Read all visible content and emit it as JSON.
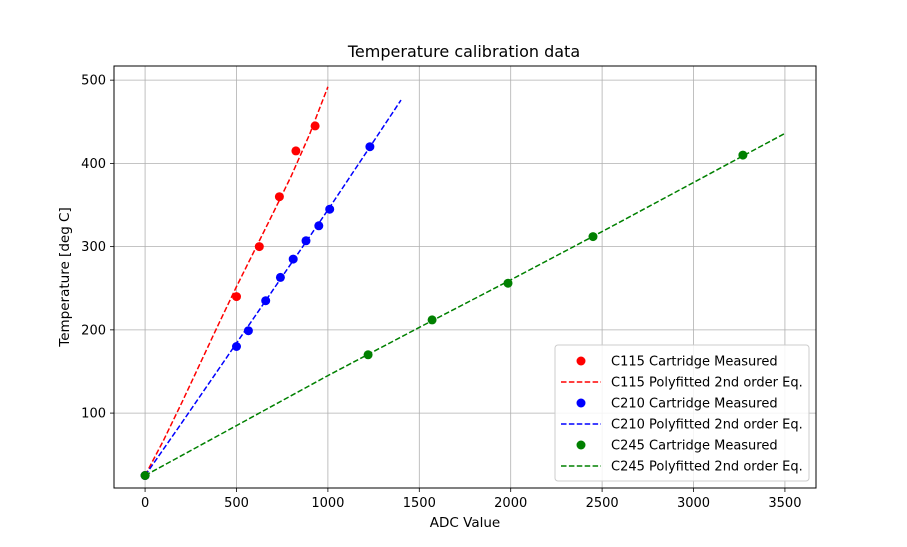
{
  "chart_data": {
    "type": "scatter",
    "title": "Temperature calibration data",
    "xlabel": "ADC Value",
    "ylabel": "Temperature [deg C]",
    "xlim": [
      -170,
      3670
    ],
    "ylim": [
      10,
      517
    ],
    "xticks": [
      0,
      500,
      1000,
      1500,
      2000,
      2500,
      3000,
      3500
    ],
    "yticks": [
      100,
      200,
      300,
      400,
      500
    ],
    "grid": true,
    "legend_position": "lower-right",
    "series": [
      {
        "name": "C115 Cartridge Measured",
        "kind": "points",
        "color": "#ff0000",
        "x": [
          0,
          500,
          625,
          735,
          825,
          930
        ],
        "y": [
          25,
          240,
          300,
          360,
          415,
          445
        ]
      },
      {
        "name": "C115 Polyfitted 2nd order Eq.",
        "kind": "dashed-line",
        "color": "#ff0000",
        "x": [
          0,
          100,
          200,
          300,
          400,
          500,
          600,
          700,
          800,
          900,
          1000
        ],
        "y": [
          25,
          67,
          112,
          159,
          206,
          252,
          296,
          340,
          385,
          435,
          492
        ]
      },
      {
        "name": "C210 Cartridge Measured",
        "kind": "points",
        "color": "#0000ff",
        "x": [
          0,
          500,
          565,
          660,
          740,
          810,
          880,
          950,
          1010,
          1230
        ],
        "y": [
          25,
          180,
          199,
          235,
          263,
          285,
          307,
          325,
          345,
          420
        ]
      },
      {
        "name": "C210 Polyfitted 2nd order Eq.",
        "kind": "dashed-line",
        "color": "#0000ff",
        "x": [
          0,
          200,
          400,
          600,
          800,
          1000,
          1200,
          1400
        ],
        "y": [
          25,
          88,
          152,
          216,
          280,
          344,
          410,
          476
        ]
      },
      {
        "name": "C245 Cartridge Measured",
        "kind": "points",
        "color": "#008000",
        "x": [
          0,
          1220,
          1570,
          1985,
          2450,
          3270
        ],
        "y": [
          25,
          170,
          212,
          256,
          312,
          410
        ]
      },
      {
        "name": "C245 Polyfitted 2nd order Eq.",
        "kind": "dashed-line",
        "color": "#008000",
        "x": [
          0,
          500,
          1000,
          1500,
          2000,
          2500,
          3000,
          3500
        ],
        "y": [
          25,
          85,
          145,
          203,
          260,
          318,
          377,
          436
        ]
      }
    ]
  }
}
